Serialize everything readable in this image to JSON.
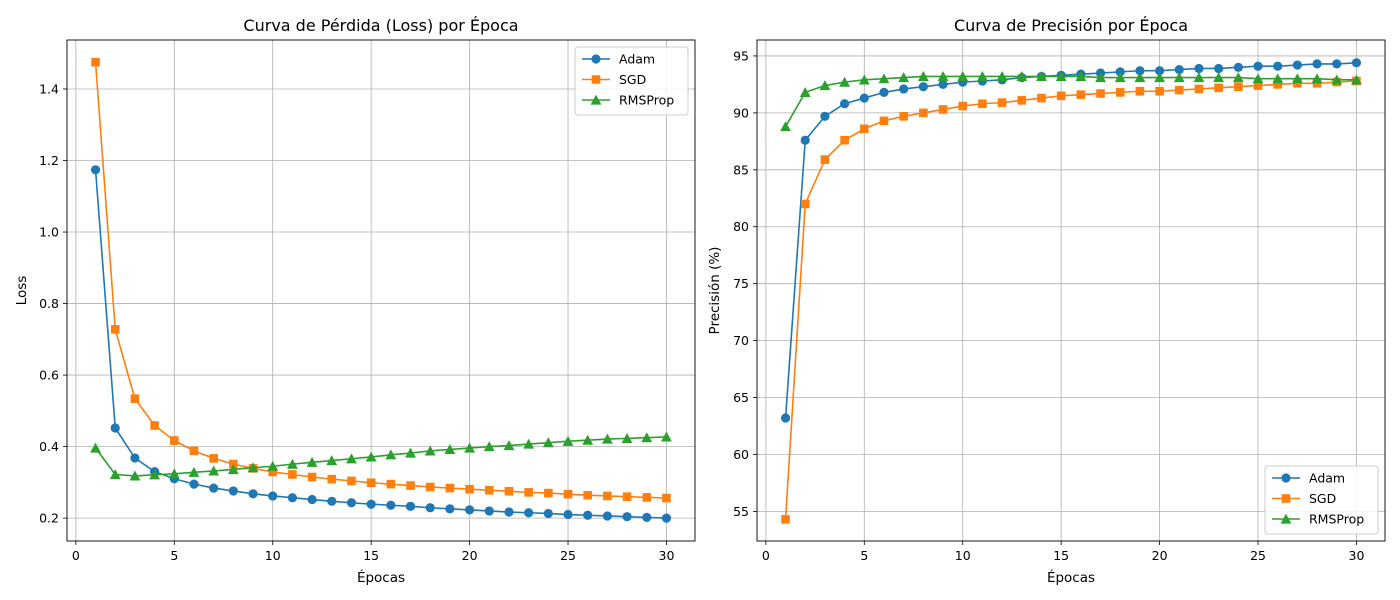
{
  "chart_data": [
    {
      "type": "line",
      "title": "Curva de Pérdida (Loss) por Época",
      "xlabel": "Épocas",
      "ylabel": "Loss",
      "xlim": [
        -0.45,
        31.45
      ],
      "ylim": [
        0.136,
        1.537
      ],
      "xticks": [
        0,
        5,
        10,
        15,
        20,
        25,
        30
      ],
      "xtick_labels": [
        "0",
        "5",
        "10",
        "15",
        "20",
        "25",
        "30"
      ],
      "yticks": [
        0.2,
        0.4,
        0.6,
        0.8,
        1.0,
        1.2,
        1.4
      ],
      "ytick_labels": [
        "0.2",
        "0.4",
        "0.6",
        "0.8",
        "1.0",
        "1.2",
        "1.4"
      ],
      "grid": true,
      "legend_position": "upper right",
      "x": [
        1,
        2,
        3,
        4,
        5,
        6,
        7,
        8,
        9,
        10,
        11,
        12,
        13,
        14,
        15,
        16,
        17,
        18,
        19,
        20,
        21,
        22,
        23,
        24,
        25,
        26,
        27,
        28,
        29,
        30
      ],
      "series": [
        {
          "name": "Adam",
          "color": "#1f77b4",
          "marker": "circle",
          "values": [
            1.174,
            0.452,
            0.368,
            0.33,
            0.31,
            0.295,
            0.284,
            0.276,
            0.268,
            0.262,
            0.257,
            0.252,
            0.247,
            0.243,
            0.239,
            0.236,
            0.233,
            0.229,
            0.226,
            0.223,
            0.22,
            0.217,
            0.215,
            0.213,
            0.21,
            0.208,
            0.206,
            0.204,
            0.202,
            0.2
          ]
        },
        {
          "name": "SGD",
          "color": "#ff7f0e",
          "marker": "square",
          "values": [
            1.475,
            0.728,
            0.534,
            0.459,
            0.417,
            0.388,
            0.367,
            0.351,
            0.339,
            0.329,
            0.322,
            0.315,
            0.309,
            0.304,
            0.299,
            0.295,
            0.291,
            0.287,
            0.284,
            0.281,
            0.278,
            0.275,
            0.272,
            0.27,
            0.267,
            0.264,
            0.262,
            0.26,
            0.258,
            0.256
          ]
        },
        {
          "name": "RMSProp",
          "color": "#2ca02c",
          "marker": "triangle",
          "values": [
            0.396,
            0.322,
            0.318,
            0.321,
            0.324,
            0.328,
            0.332,
            0.336,
            0.341,
            0.345,
            0.351,
            0.356,
            0.361,
            0.366,
            0.371,
            0.377,
            0.382,
            0.388,
            0.392,
            0.396,
            0.4,
            0.403,
            0.407,
            0.411,
            0.415,
            0.418,
            0.421,
            0.423,
            0.425,
            0.427
          ]
        }
      ]
    },
    {
      "type": "line",
      "title": "Curva de Precisión por Época",
      "xlabel": "Épocas",
      "ylabel": "Precisión (%)",
      "xlim": [
        -0.45,
        31.45
      ],
      "ylim": [
        52.4,
        96.4
      ],
      "xticks": [
        0,
        5,
        10,
        15,
        20,
        25,
        30
      ],
      "xtick_labels": [
        "0",
        "5",
        "10",
        "15",
        "20",
        "25",
        "30"
      ],
      "yticks": [
        55,
        60,
        65,
        70,
        75,
        80,
        85,
        90,
        95
      ],
      "ytick_labels": [
        "55",
        "60",
        "65",
        "70",
        "75",
        "80",
        "85",
        "90",
        "95"
      ],
      "grid": true,
      "legend_position": "lower right",
      "x": [
        1,
        2,
        3,
        4,
        5,
        6,
        7,
        8,
        9,
        10,
        11,
        12,
        13,
        14,
        15,
        16,
        17,
        18,
        19,
        20,
        21,
        22,
        23,
        24,
        25,
        26,
        27,
        28,
        29,
        30
      ],
      "series": [
        {
          "name": "Adam",
          "color": "#1f77b4",
          "marker": "circle",
          "values": [
            63.2,
            87.6,
            89.7,
            90.8,
            91.3,
            91.8,
            92.1,
            92.3,
            92.5,
            92.7,
            92.8,
            92.9,
            93.1,
            93.2,
            93.3,
            93.4,
            93.5,
            93.6,
            93.7,
            93.7,
            93.8,
            93.9,
            93.9,
            94.0,
            94.1,
            94.1,
            94.2,
            94.3,
            94.3,
            94.4
          ]
        },
        {
          "name": "SGD",
          "color": "#ff7f0e",
          "marker": "square",
          "values": [
            54.3,
            82.0,
            85.9,
            87.6,
            88.6,
            89.3,
            89.7,
            90.0,
            90.3,
            90.6,
            90.8,
            90.9,
            91.1,
            91.3,
            91.5,
            91.6,
            91.7,
            91.8,
            91.9,
            91.9,
            92.0,
            92.1,
            92.2,
            92.3,
            92.4,
            92.5,
            92.6,
            92.6,
            92.7,
            92.8
          ]
        },
        {
          "name": "RMSProp",
          "color": "#2ca02c",
          "marker": "triangle",
          "values": [
            88.8,
            91.8,
            92.4,
            92.7,
            92.9,
            93.0,
            93.1,
            93.2,
            93.2,
            93.2,
            93.2,
            93.2,
            93.2,
            93.2,
            93.2,
            93.2,
            93.1,
            93.1,
            93.1,
            93.1,
            93.1,
            93.1,
            93.1,
            93.1,
            93.0,
            93.0,
            93.0,
            93.0,
            92.9,
            92.9
          ]
        }
      ]
    }
  ]
}
